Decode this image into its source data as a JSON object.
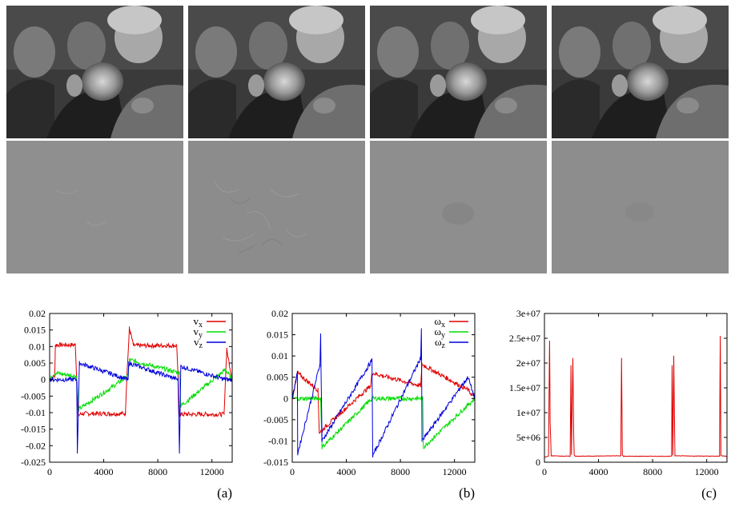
{
  "photos": {
    "top_row_count": 4,
    "bottom_row_count": 4
  },
  "chart_data": [
    {
      "type": "line",
      "panel_label": "(a)",
      "xlim": [
        0,
        13500
      ],
      "ylim": [
        -0.025,
        0.02
      ],
      "xticks": [
        0,
        4000,
        8000,
        12000
      ],
      "yticks": [
        -0.025,
        -0.02,
        -0.015,
        -0.01,
        -0.005,
        0,
        0.005,
        0.01,
        0.015,
        0.02
      ],
      "ytick_labels": [
        "-0.025",
        "-0.02",
        "-0.015",
        "-0.01",
        "-0.005",
        "0",
        "0.005",
        "0.01",
        "0.015",
        "0.02"
      ],
      "legend_position": "top-right",
      "series": [
        {
          "name": "vx",
          "label_main": "v",
          "label_sub": "x",
          "color": "#e00000",
          "x": [
            0,
            380,
            420,
            1900,
            2000,
            2100,
            2300,
            5600,
            5700,
            5900,
            6200,
            9400,
            9500,
            9600,
            9800,
            12900,
            13000,
            13100,
            13500
          ],
          "y": [
            0,
            0.001,
            0.0105,
            0.0105,
            0,
            -0.011,
            -0.0103,
            -0.0103,
            0,
            0.0155,
            0.0103,
            0.0103,
            0,
            -0.0105,
            -0.0105,
            -0.0105,
            0,
            0.009,
            0
          ]
        },
        {
          "name": "vy",
          "label_main": "v",
          "label_sub": "y",
          "color": "#00dd00",
          "x": [
            0,
            400,
            2000,
            2150,
            5800,
            5900,
            9600,
            9700,
            13000,
            13500
          ],
          "y": [
            0,
            0.002,
            0.001,
            -0.009,
            0.001,
            0.006,
            0.002,
            -0.008,
            0.003,
            0
          ]
        },
        {
          "name": "vz",
          "label_main": "v",
          "label_sub": "z",
          "color": "#0000dd",
          "x": [
            0,
            2000,
            2050,
            2200,
            5800,
            5850,
            9500,
            9600,
            9700,
            13000,
            13500
          ],
          "y": [
            0,
            0,
            -0.022,
            0.005,
            0,
            0.005,
            0,
            -0.022,
            0.004,
            0,
            0
          ]
        }
      ]
    },
    {
      "type": "line",
      "panel_label": "(b)",
      "xlim": [
        0,
        13500
      ],
      "ylim": [
        -0.015,
        0.02
      ],
      "xticks": [
        0,
        4000,
        8000,
        12000
      ],
      "yticks": [
        -0.015,
        -0.01,
        -0.005,
        0,
        0.005,
        0.01,
        0.015,
        0.02
      ],
      "ytick_labels": [
        "-0.015",
        "-0.01",
        "-0.005",
        "0",
        "0.005",
        "0.01",
        "0.015",
        "0.02"
      ],
      "legend_position": "top-right",
      "series": [
        {
          "name": "ωx",
          "label_main": "ω",
          "label_sub": "x",
          "color": "#e00000",
          "x": [
            0,
            380,
            1900,
            2000,
            5800,
            5900,
            9500,
            9600,
            13000,
            13500
          ],
          "y": [
            0,
            0.006,
            0.002,
            -0.008,
            0.003,
            0.006,
            0.003,
            0.008,
            0.002,
            0
          ]
        },
        {
          "name": "ωy",
          "label_main": "ω",
          "label_sub": "y",
          "color": "#00dd00",
          "x": [
            0,
            2100,
            2200,
            5900,
            9650,
            9700,
            13500
          ],
          "y": [
            0,
            0,
            -0.0115,
            0,
            0,
            -0.0115,
            0
          ]
        },
        {
          "name": "ωz",
          "label_main": "ω",
          "label_sub": "z",
          "color": "#0000dd",
          "x": [
            0,
            380,
            400,
            2050,
            2100,
            2200,
            5900,
            5950,
            9500,
            9550,
            9600,
            13000,
            13500
          ],
          "y": [
            0,
            0.006,
            -0.013,
            0.008,
            0.015,
            -0.01,
            0.009,
            -0.0135,
            0.0095,
            0.0165,
            -0.01,
            0.005,
            0
          ]
        }
      ]
    },
    {
      "type": "line",
      "panel_label": "(c)",
      "xlim": [
        0,
        13500
      ],
      "ylim": [
        0,
        30000000
      ],
      "xticks": [
        0,
        4000,
        8000,
        12000
      ],
      "yticks": [
        0,
        5000000,
        10000000,
        15000000,
        20000000,
        25000000,
        30000000
      ],
      "ytick_labels": [
        "0",
        "5e+06",
        "1e+07",
        "1.5e+07",
        "2e+07",
        "2.5e+07",
        "3e+07"
      ],
      "series": [
        {
          "name": "",
          "color": "#e00000",
          "x": [
            0,
            300,
            380,
            420,
            500,
            1900,
            1960,
            2000,
            2100,
            2160,
            2200,
            2300,
            5650,
            5700,
            5760,
            5850,
            9400,
            9440,
            9500,
            9560,
            9650,
            12950,
            13000,
            13050,
            13500
          ],
          "y": [
            1000000,
            1200000,
            24500000,
            8000000,
            1300000,
            1200000,
            19500000,
            1500000,
            21000000,
            6000000,
            1400000,
            1200000,
            1300000,
            21000000,
            1500000,
            1200000,
            1200000,
            19500000,
            1400000,
            21500000,
            1300000,
            1200000,
            25500000,
            1300000,
            1200000
          ]
        }
      ]
    }
  ]
}
